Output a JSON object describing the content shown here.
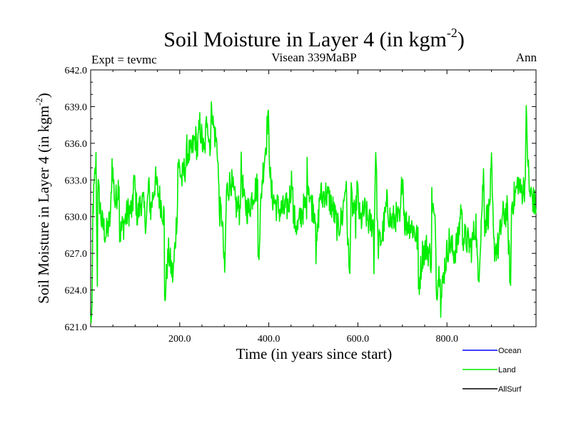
{
  "chart_data": {
    "type": "line",
    "title": "Soil Moisture in Layer 4 (in kgm",
    "title_sup": "-2",
    "title_close": ")",
    "subtitle_left": "Expt = tevmc",
    "subtitle_center": "Visean 339MaBP",
    "subtitle_right": "Ann",
    "xlabel": "Time (in years since start)",
    "ylabel": "Soil Moisture in Layer 4 (in kgm",
    "ylabel_sup": "-2",
    "ylabel_close": ")",
    "xlim": [
      0,
      1000
    ],
    "ylim": [
      621.0,
      642.0
    ],
    "xticks": [
      200,
      400,
      600,
      800
    ],
    "xtick_labels": [
      "200.0",
      "400.0",
      "600.0",
      "800.0"
    ],
    "yticks": [
      621,
      624,
      627,
      630,
      633,
      636,
      639,
      642
    ],
    "ytick_labels": [
      "621.0",
      "624.0",
      "627.0",
      "630.0",
      "633.0",
      "636.0",
      "639.0",
      "642.0"
    ],
    "legend": [
      {
        "name": "Ocean",
        "color": "#0000ff"
      },
      {
        "name": "Land",
        "color": "#00ee00"
      },
      {
        "name": "AllSurf",
        "color": "#000000"
      }
    ],
    "series": [
      {
        "name": "Land",
        "color": "#00ee00",
        "x_start": 0,
        "x_step": 10,
        "values": [
          630.5,
          625.0,
          629.5,
          628.5,
          630.0,
          631.0,
          628.5,
          629.5,
          630.5,
          630.5,
          630.0,
          631.5,
          629.5,
          630.5,
          633.0,
          631.5,
          630.0,
          627.0,
          625.0,
          631.0,
          633.0,
          634.5,
          635.0,
          636.5,
          637.5,
          635.0,
          636.5,
          637.5,
          635.5,
          630.0,
          632.0,
          633.0,
          631.0,
          630.5,
          631.0,
          630.5,
          632.0,
          632.5,
          633.0,
          636.5,
          632.0,
          631.0,
          630.5,
          630.5,
          631.0,
          630.0,
          629.0,
          630.5,
          631.0,
          631.0,
          630.5,
          632.0,
          632.0,
          631.5,
          630.5,
          629.0,
          630.0,
          630.5,
          631.5,
          629.5,
          629.5,
          630.5,
          629.5,
          629.5,
          627.5,
          628.5,
          631.0,
          629.5,
          630.0,
          629.5,
          629.5,
          629.5,
          629.0,
          628.0,
          627.0,
          627.5,
          626.5,
          628.5,
          626.0,
          626.0,
          628.0,
          627.0,
          628.0,
          628.5,
          628.0,
          627.5,
          629.5,
          628.0,
          629.5,
          630.5,
          627.5,
          627.5,
          630.0,
          630.5,
          631.0,
          632.0,
          632.0,
          632.5,
          632.0,
          631.0
        ]
      },
      {
        "name": "Land-envelope",
        "color": "#00ee00",
        "x": [
          3,
          12,
          15,
          48,
          64,
          95,
          130,
          166,
          172,
          196,
          215,
          240,
          262,
          269,
          272,
          289,
          301,
          338,
          375,
          398,
          453,
          485,
          505,
          520,
          573,
          581,
          598,
          635,
          640,
          700,
          736,
          766,
          776,
          785,
          832,
          870,
          882,
          900,
          943,
          960,
          978,
          993,
          998
        ],
        "values": [
          621.5,
          634.5,
          633.0,
          634.5,
          633.0,
          634.0,
          632.5,
          623.0,
          626.0,
          634.5,
          635.5,
          635.5,
          638.5,
          636.0,
          639.5,
          630.5,
          625.0,
          634.0,
          625.5,
          638.5,
          633.5,
          634.0,
          626.0,
          631.5,
          633.0,
          625.0,
          632.5,
          624.0,
          636.0,
          634.0,
          624.0,
          631.5,
          624.0,
          622.5,
          631.0,
          624.5,
          633.5,
          634.0,
          624.0,
          633.0,
          638.0,
          631.5,
          631.0
        ]
      }
    ]
  }
}
